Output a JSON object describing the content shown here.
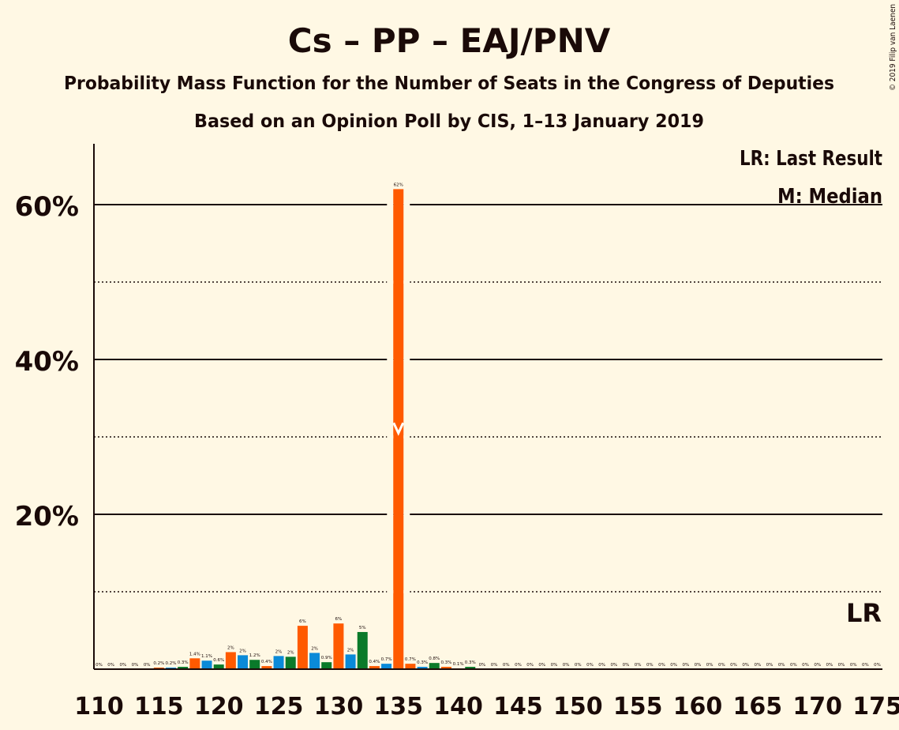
{
  "header": {
    "title": "Cs – PP – EAJ/PNV",
    "subtitle": "Probability Mass Function for the Number of Seats in the Congress of Deputies",
    "source": "Based on an Opinion Poll by CIS, 1–13 January 2019",
    "copyright": "© 2019 Filip van Laenen"
  },
  "legend": {
    "lr": "LR: Last Result",
    "m": "M: Median"
  },
  "lr_marker_label": "LR",
  "colors": {
    "background": "#fff8e4",
    "ink": "#1a0a08",
    "cs": "#ff5a00",
    "pp": "#0a8ad8",
    "pnv": "#0a7a2a"
  },
  "chart_data": {
    "type": "bar",
    "xlabel": "",
    "ylabel": "",
    "ylim": [
      0,
      0.68
    ],
    "xlim": [
      110,
      175
    ],
    "x_ticks": [
      110,
      115,
      120,
      125,
      130,
      135,
      140,
      145,
      150,
      155,
      160,
      165,
      170,
      175
    ],
    "y_ticks_solid": [
      0.2,
      0.4,
      0.6
    ],
    "y_tick_labels": [
      "20%",
      "40%",
      "60%"
    ],
    "y_gridlines_dotted": [
      0.1,
      0.3,
      0.5
    ],
    "median": 135,
    "last_result": 175,
    "bars": [
      {
        "seats": 110,
        "p": 0.0,
        "label": "0%"
      },
      {
        "seats": 111,
        "p": 0.0,
        "label": "0%"
      },
      {
        "seats": 112,
        "p": 0.0,
        "label": "0%"
      },
      {
        "seats": 113,
        "p": 0.0,
        "label": "0%"
      },
      {
        "seats": 114,
        "p": 0.0,
        "label": "0%"
      },
      {
        "seats": 115,
        "p": 0.002,
        "label": "0.2%"
      },
      {
        "seats": 116,
        "p": 0.002,
        "label": "0.2%"
      },
      {
        "seats": 117,
        "p": 0.003,
        "label": "0.3%"
      },
      {
        "seats": 118,
        "p": 0.014,
        "label": "1.4%"
      },
      {
        "seats": 119,
        "p": 0.011,
        "label": "1.1%"
      },
      {
        "seats": 120,
        "p": 0.006,
        "label": "0.6%"
      },
      {
        "seats": 121,
        "p": 0.022,
        "label": "2%"
      },
      {
        "seats": 122,
        "p": 0.018,
        "label": "2%"
      },
      {
        "seats": 123,
        "p": 0.012,
        "label": "1.2%"
      },
      {
        "seats": 124,
        "p": 0.004,
        "label": "0.4%"
      },
      {
        "seats": 125,
        "p": 0.017,
        "label": "2%"
      },
      {
        "seats": 126,
        "p": 0.016,
        "label": "2%"
      },
      {
        "seats": 127,
        "p": 0.056,
        "label": "6%"
      },
      {
        "seats": 128,
        "p": 0.021,
        "label": "2%"
      },
      {
        "seats": 129,
        "p": 0.009,
        "label": "0.9%"
      },
      {
        "seats": 130,
        "p": 0.059,
        "label": "6%"
      },
      {
        "seats": 131,
        "p": 0.019,
        "label": "2%"
      },
      {
        "seats": 132,
        "p": 0.048,
        "label": "5%"
      },
      {
        "seats": 133,
        "p": 0.004,
        "label": "0.4%"
      },
      {
        "seats": 134,
        "p": 0.007,
        "label": "0.7%"
      },
      {
        "seats": 135,
        "p": 0.62,
        "label": "62%"
      },
      {
        "seats": 136,
        "p": 0.007,
        "label": "0.7%"
      },
      {
        "seats": 137,
        "p": 0.003,
        "label": "0.3%"
      },
      {
        "seats": 138,
        "p": 0.008,
        "label": "0.8%"
      },
      {
        "seats": 139,
        "p": 0.003,
        "label": "0.3%"
      },
      {
        "seats": 140,
        "p": 0.001,
        "label": "0.1%"
      },
      {
        "seats": 141,
        "p": 0.003,
        "label": "0.3%"
      },
      {
        "seats": 142,
        "p": 0.0,
        "label": "0%"
      },
      {
        "seats": 143,
        "p": 0.0,
        "label": "0%"
      },
      {
        "seats": 144,
        "p": 0.0,
        "label": "0%"
      },
      {
        "seats": 145,
        "p": 0.0,
        "label": "0%"
      },
      {
        "seats": 146,
        "p": 0.0,
        "label": "0%"
      },
      {
        "seats": 147,
        "p": 0.0,
        "label": "0%"
      },
      {
        "seats": 148,
        "p": 0.0,
        "label": "0%"
      },
      {
        "seats": 149,
        "p": 0.0,
        "label": "0%"
      },
      {
        "seats": 150,
        "p": 0.0,
        "label": "0%"
      },
      {
        "seats": 151,
        "p": 0.0,
        "label": "0%"
      },
      {
        "seats": 152,
        "p": 0.0,
        "label": "0%"
      },
      {
        "seats": 153,
        "p": 0.0,
        "label": "0%"
      },
      {
        "seats": 154,
        "p": 0.0,
        "label": "0%"
      },
      {
        "seats": 155,
        "p": 0.0,
        "label": "0%"
      },
      {
        "seats": 156,
        "p": 0.0,
        "label": "0%"
      },
      {
        "seats": 157,
        "p": 0.0,
        "label": "0%"
      },
      {
        "seats": 158,
        "p": 0.0,
        "label": "0%"
      },
      {
        "seats": 159,
        "p": 0.0,
        "label": "0%"
      },
      {
        "seats": 160,
        "p": 0.0,
        "label": "0%"
      },
      {
        "seats": 161,
        "p": 0.0,
        "label": "0%"
      },
      {
        "seats": 162,
        "p": 0.0,
        "label": "0%"
      },
      {
        "seats": 163,
        "p": 0.0,
        "label": "0%"
      },
      {
        "seats": 164,
        "p": 0.0,
        "label": "0%"
      },
      {
        "seats": 165,
        "p": 0.0,
        "label": "0%"
      },
      {
        "seats": 166,
        "p": 0.0,
        "label": "0%"
      },
      {
        "seats": 167,
        "p": 0.0,
        "label": "0%"
      },
      {
        "seats": 168,
        "p": 0.0,
        "label": "0%"
      },
      {
        "seats": 169,
        "p": 0.0,
        "label": "0%"
      },
      {
        "seats": 170,
        "p": 0.0,
        "label": "0%"
      },
      {
        "seats": 171,
        "p": 0.0,
        "label": "0%"
      },
      {
        "seats": 172,
        "p": 0.0,
        "label": "0%"
      },
      {
        "seats": 173,
        "p": 0.0,
        "label": "0%"
      },
      {
        "seats": 174,
        "p": 0.0,
        "label": "0%"
      },
      {
        "seats": 175,
        "p": 0.0,
        "label": "0%"
      }
    ]
  }
}
